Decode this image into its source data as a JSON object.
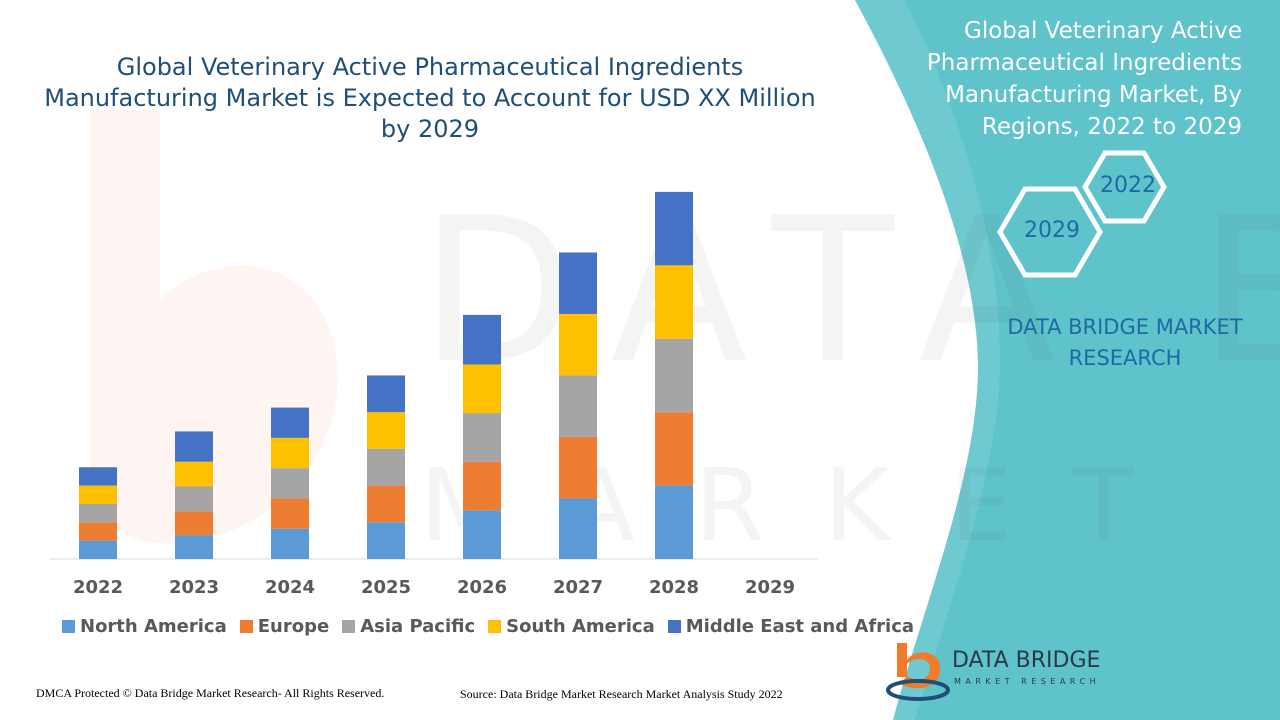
{
  "chart_data": {
    "type": "bar",
    "stacked": true,
    "title": "Global Veterinary Active Pharmaceutical Ingredients Manufacturing Market is Expected to Account for USD XX Million by 2029",
    "xlabel": "",
    "ylabel": "",
    "grid": false,
    "legend_position": "bottom",
    "ylim": [
      0,
      400
    ],
    "categories": [
      "2022",
      "2023",
      "2024",
      "2025",
      "2026",
      "2027",
      "2028",
      "2029"
    ],
    "series": [
      {
        "name": "North America",
        "color": "#5b9bd5",
        "values": [
          20,
          26,
          33,
          40,
          53,
          66,
          80,
          0
        ]
      },
      {
        "name": "Europe",
        "color": "#ed7d31",
        "values": [
          20,
          26,
          33,
          40,
          53,
          67,
          80,
          0
        ]
      },
      {
        "name": "Asia Pacific",
        "color": "#a5a5a5",
        "values": [
          20,
          27,
          33,
          40,
          53,
          67,
          80,
          0
        ]
      },
      {
        "name": "South America",
        "color": "#ffc000",
        "values": [
          20,
          27,
          33,
          40,
          53,
          67,
          80,
          0
        ]
      },
      {
        "name": "Middle East and Africa",
        "color": "#4472c4",
        "values": [
          20,
          33,
          33,
          40,
          54,
          67,
          80,
          0
        ]
      }
    ]
  },
  "side_panel": {
    "title": "Global Veterinary Active Pharmaceutical Ingredients Manufacturing Market, By Regions, 2022 to 2029",
    "hex_labels": [
      "2022",
      "2029"
    ],
    "brand": "DATA BRIDGE MARKET RESEARCH",
    "panel_color": "#5ec3cb"
  },
  "footer": {
    "copyright": "DMCA Protected © Data Bridge Market Research- All Rights Reserved.",
    "source": "Source: Data Bridge Market Research Market Analysis Study 2022"
  },
  "logo": {
    "name": "DATA BRIDGE",
    "tagline": "MARKET RESEARCH"
  }
}
